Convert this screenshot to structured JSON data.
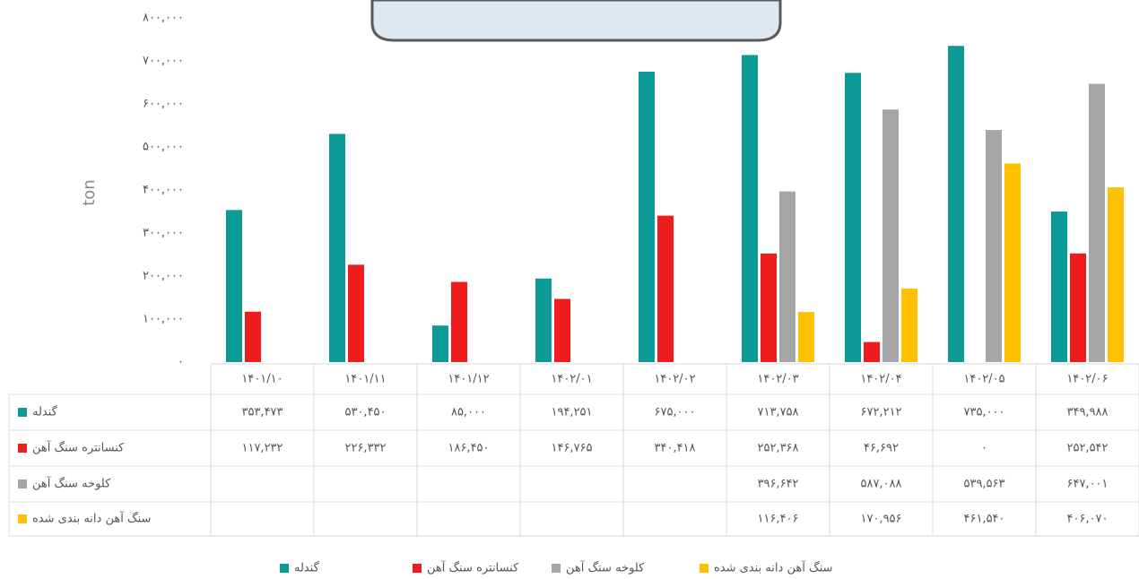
{
  "chart_data": {
    "type": "bar",
    "y_label": "ton",
    "categories": [
      "۱۴۰۱/۱۰",
      "۱۴۰۱/۱۱",
      "۱۴۰۱/۱۲",
      "۱۴۰۲/۰۱",
      "۱۴۰۲/۰۲",
      "۱۴۰۲/۰۳",
      "۱۴۰۲/۰۴",
      "۱۴۰۲/۰۵",
      "۱۴۰۲/۰۶"
    ],
    "series": [
      {
        "name": "گندله",
        "color": "#0e9a96",
        "values": [
          353473,
          530450,
          85000,
          194251,
          675000,
          713758,
          672212,
          735000,
          349988
        ],
        "value_labels": [
          "۳۵۳,۴۷۳",
          "۵۳۰,۴۵۰",
          "۸۵,۰۰۰",
          "۱۹۴,۲۵۱",
          "۶۷۵,۰۰۰",
          "۷۱۳,۷۵۸",
          "۶۷۲,۲۱۲",
          "۷۳۵,۰۰۰",
          "۳۴۹,۹۸۸"
        ]
      },
      {
        "name": "کنسانتره سنگ آهن",
        "color": "#ee1c1c",
        "values": [
          117232,
          226332,
          186450,
          146765,
          340418,
          252368,
          46692,
          0,
          252542
        ],
        "value_labels": [
          "۱۱۷,۲۳۲",
          "۲۲۶,۳۳۲",
          "۱۸۶,۴۵۰",
          "۱۴۶,۷۶۵",
          "۳۴۰,۴۱۸",
          "۲۵۲,۳۶۸",
          "۴۶,۶۹۲",
          "۰",
          "۲۵۲,۵۴۲"
        ]
      },
      {
        "name": "کلوخه سنگ آهن",
        "color": "#a6a6a6",
        "values": [
          null,
          null,
          null,
          null,
          null,
          396642,
          587088,
          539563,
          647001
        ],
        "value_labels": [
          null,
          null,
          null,
          null,
          null,
          "۳۹۶,۶۴۲",
          "۵۸۷,۰۸۸",
          "۵۳۹,۵۶۳",
          "۶۴۷,۰۰۱"
        ]
      },
      {
        "name": "سنگ آهن دانه بندی شده",
        "color": "#ffc000",
        "values": [
          null,
          null,
          null,
          null,
          null,
          116406,
          170956,
          461540,
          406070
        ],
        "value_labels": [
          null,
          null,
          null,
          null,
          null,
          "۱۱۶,۴۰۶",
          "۱۷۰,۹۵۶",
          "۴۶۱,۵۴۰",
          "۴۰۶,۰۷۰"
        ]
      }
    ],
    "ylim": [
      0,
      800000
    ],
    "yticks": [
      {
        "value": 0,
        "label": "۰"
      },
      {
        "value": 100000,
        "label": "۱۰۰,۰۰۰"
      },
      {
        "value": 200000,
        "label": "۲۰۰,۰۰۰"
      },
      {
        "value": 300000,
        "label": "۳۰۰,۰۰۰"
      },
      {
        "value": 400000,
        "label": "۴۰۰,۰۰۰"
      },
      {
        "value": 500000,
        "label": "۵۰۰,۰۰۰"
      },
      {
        "value": 600000,
        "label": "۶۰۰,۰۰۰"
      },
      {
        "value": 700000,
        "label": "۷۰۰,۰۰۰"
      },
      {
        "value": 800000,
        "label": "۸۰۰,۰۰۰"
      }
    ],
    "grid": false,
    "legend": "bottom"
  }
}
